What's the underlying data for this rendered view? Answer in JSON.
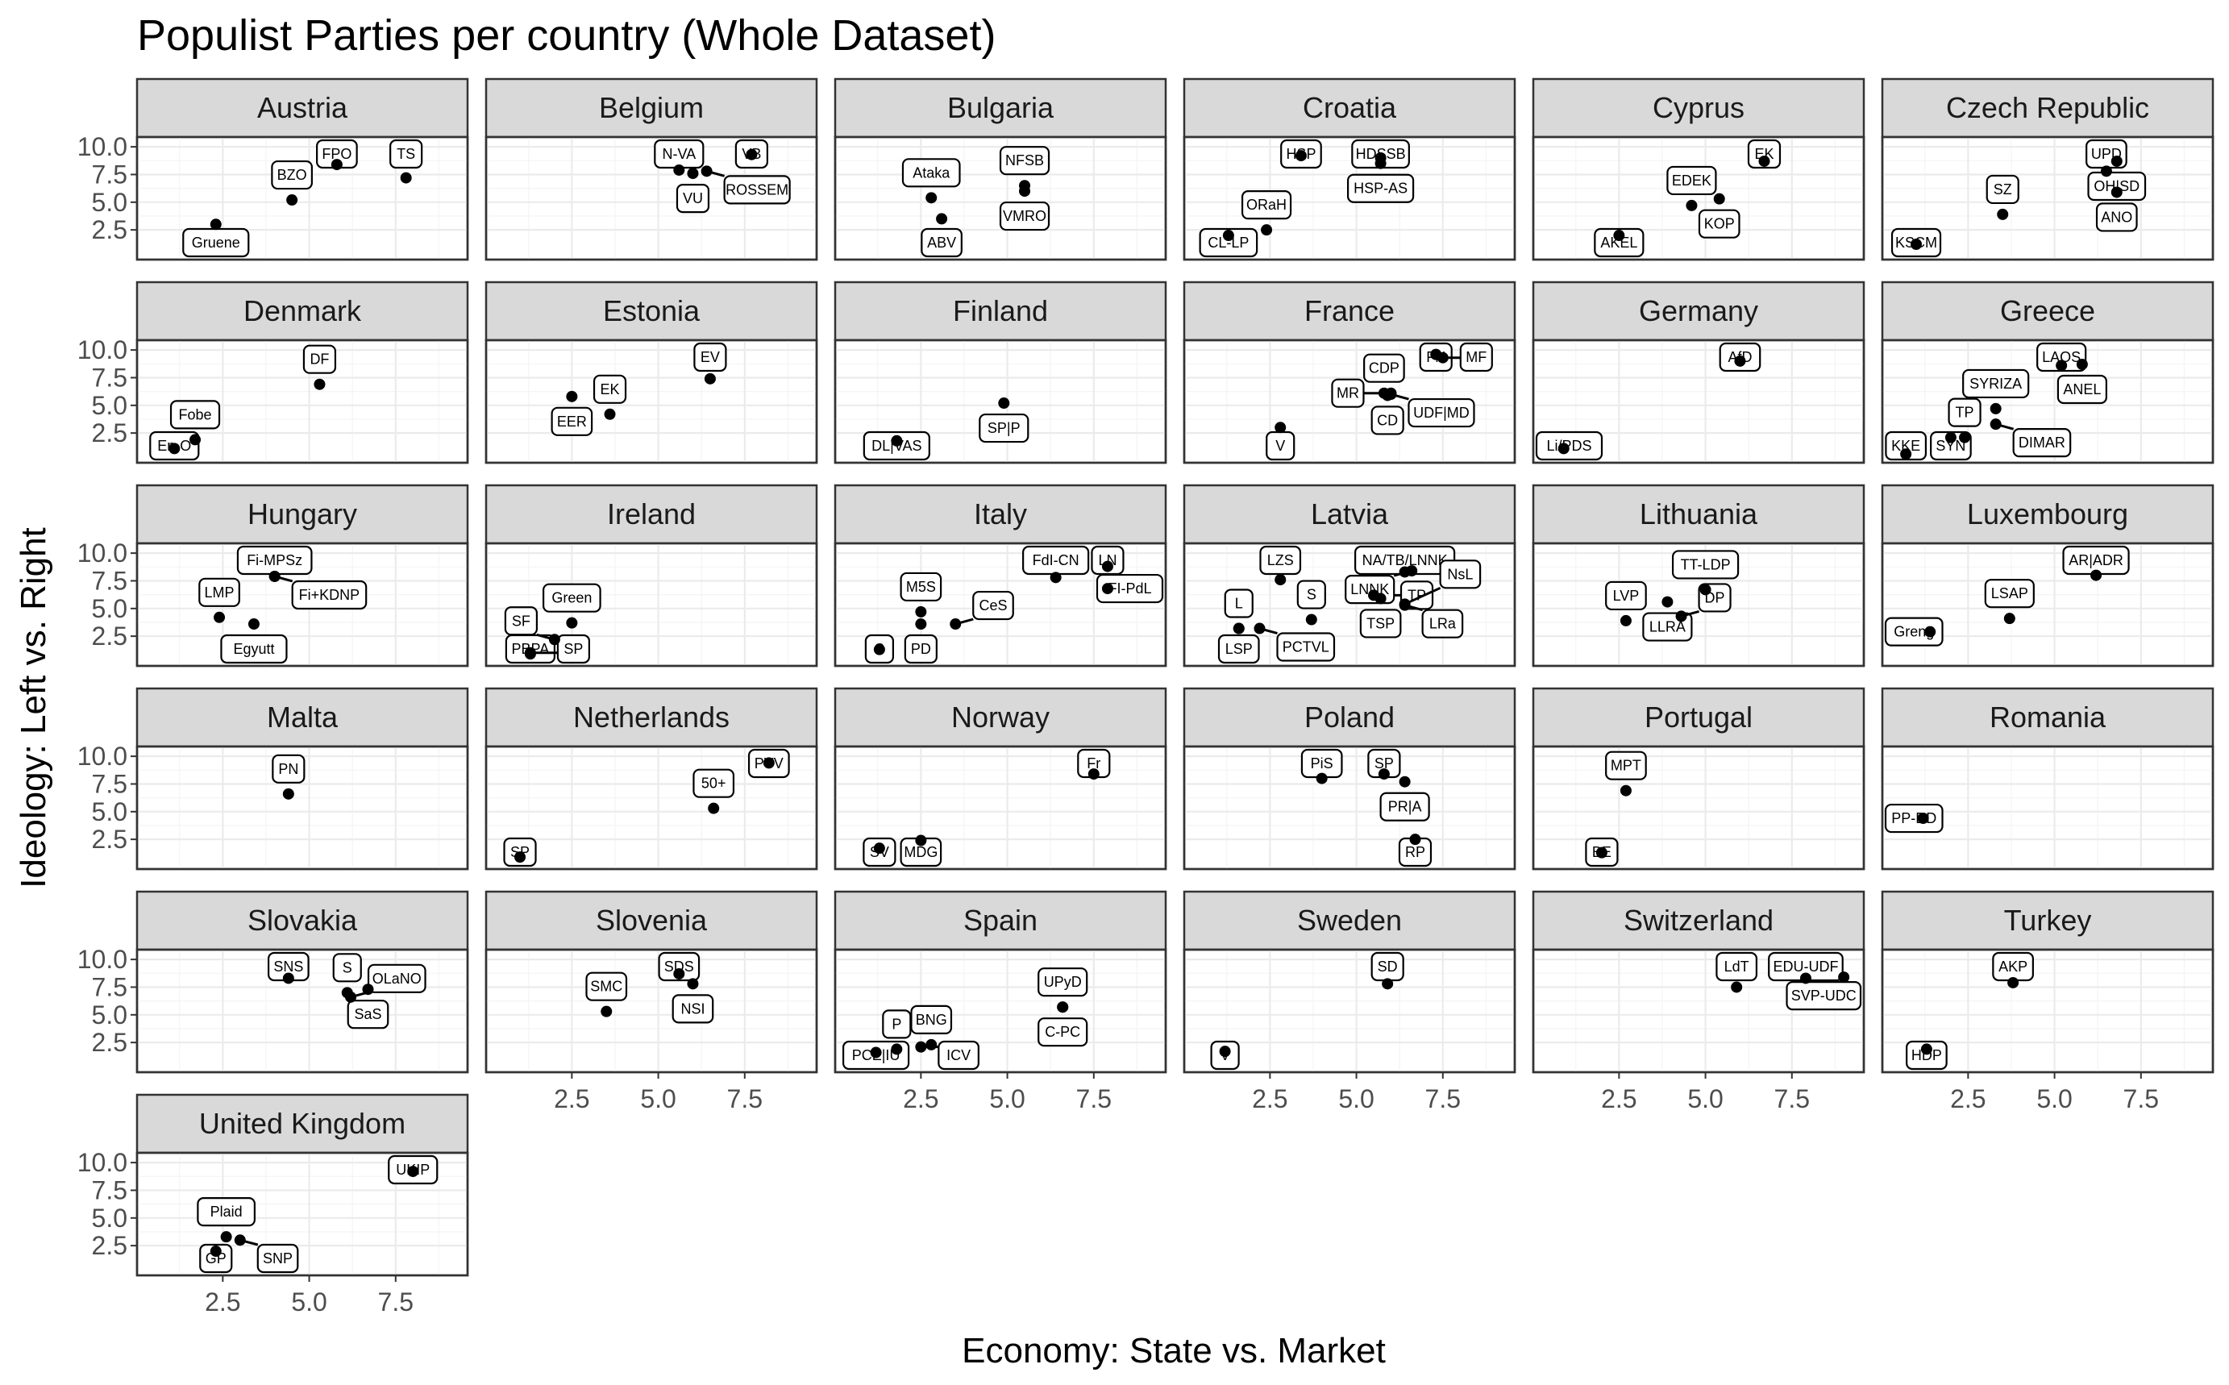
{
  "chart_data": {
    "type": "scatter",
    "title": "Populist Parties per country (Whole Dataset)",
    "xlabel": "Economy: State vs. Market",
    "ylabel": "Ideology: Left vs. Right",
    "xlim": [
      0.3,
      9.3
    ],
    "ylim": [
      0.4,
      10.3
    ],
    "x_ticks": [
      "2.5",
      "5.0",
      "7.5"
    ],
    "y_ticks": [
      "2.5",
      "5.0",
      "7.5",
      "10.0"
    ],
    "grid": true,
    "panels": [
      {
        "name": "Austria",
        "points": [
          {
            "label": "Gruene",
            "x": 2.3,
            "y": 3.0
          },
          {
            "label": "BZO",
            "x": 4.5,
            "y": 5.2
          },
          {
            "label": "FPO",
            "x": 5.8,
            "y": 8.4
          },
          {
            "label": "TS",
            "x": 7.8,
            "y": 7.2
          }
        ]
      },
      {
        "name": "Belgium",
        "points": [
          {
            "label": "N-VA",
            "x": 5.6,
            "y": 7.9
          },
          {
            "label": "VU",
            "x": 6.0,
            "y": 7.6
          },
          {
            "label": "VB",
            "x": 7.7,
            "y": 9.3
          },
          {
            "label": "ROSSEM",
            "x": 6.4,
            "y": 7.8
          }
        ]
      },
      {
        "name": "Bulgaria",
        "points": [
          {
            "label": "Ataka",
            "x": 2.8,
            "y": 5.4
          },
          {
            "label": "ABV",
            "x": 3.1,
            "y": 3.5
          },
          {
            "label": "NFSB",
            "x": 5.5,
            "y": 6.5
          },
          {
            "label": "VMRO",
            "x": 5.5,
            "y": 6.0
          }
        ]
      },
      {
        "name": "Croatia",
        "points": [
          {
            "label": "HSP",
            "x": 3.4,
            "y": 9.2
          },
          {
            "label": "HDSSB",
            "x": 5.7,
            "y": 9.0
          },
          {
            "label": "HSP-AS",
            "x": 5.7,
            "y": 8.5
          },
          {
            "label": "CL-LP",
            "x": 1.3,
            "y": 2.0
          },
          {
            "label": "ORaH",
            "x": 2.4,
            "y": 2.5
          }
        ]
      },
      {
        "name": "Cyprus",
        "points": [
          {
            "label": "AKEL",
            "x": 2.5,
            "y": 2.0
          },
          {
            "label": "EDEK",
            "x": 4.6,
            "y": 4.7
          },
          {
            "label": "KOP",
            "x": 5.4,
            "y": 5.3
          },
          {
            "label": "EK",
            "x": 6.7,
            "y": 8.7
          }
        ]
      },
      {
        "name": "Czech Republic",
        "points": [
          {
            "label": "KSCM",
            "x": 1.0,
            "y": 1.2
          },
          {
            "label": "SZ",
            "x": 3.5,
            "y": 3.9
          },
          {
            "label": "UPD",
            "x": 6.5,
            "y": 7.8
          },
          {
            "label": "OH|SD",
            "x": 6.8,
            "y": 8.7
          },
          {
            "label": "ANO",
            "x": 6.8,
            "y": 5.9
          }
        ]
      },
      {
        "name": "Denmark",
        "points": [
          {
            "label": "En-O",
            "x": 1.1,
            "y": 1.1
          },
          {
            "label": "Fobe",
            "x": 1.7,
            "y": 1.9
          },
          {
            "label": "DF",
            "x": 5.3,
            "y": 6.9
          }
        ]
      },
      {
        "name": "Estonia",
        "points": [
          {
            "label": "EER",
            "x": 2.5,
            "y": 5.8
          },
          {
            "label": "EK",
            "x": 3.6,
            "y": 4.2
          },
          {
            "label": "EV",
            "x": 6.5,
            "y": 7.4
          }
        ]
      },
      {
        "name": "Finland",
        "points": [
          {
            "label": "DL|VAS",
            "x": 1.8,
            "y": 1.8
          },
          {
            "label": "SP|P",
            "x": 4.9,
            "y": 5.2
          }
        ]
      },
      {
        "name": "France",
        "points": [
          {
            "label": "V",
            "x": 2.8,
            "y": 3.0
          },
          {
            "label": "CDP",
            "x": 5.8,
            "y": 6.1
          },
          {
            "label": "CD",
            "x": 5.9,
            "y": 5.9
          },
          {
            "label": "FN",
            "x": 7.3,
            "y": 9.6
          },
          {
            "label": "MF",
            "x": 7.5,
            "y": 9.3
          },
          {
            "label": "UDF|MD",
            "x": 6.0,
            "y": 6.0
          },
          {
            "label": "MR",
            "x": 6.0,
            "y": 6.1
          }
        ]
      },
      {
        "name": "Germany",
        "points": [
          {
            "label": "Li/PDS",
            "x": 0.9,
            "y": 1.1
          },
          {
            "label": "AfD",
            "x": 6.0,
            "y": 9.0
          }
        ]
      },
      {
        "name": "Greece",
        "points": [
          {
            "label": "KKE",
            "x": 0.7,
            "y": 0.6
          },
          {
            "label": "SYN",
            "x": 2.0,
            "y": 2.1
          },
          {
            "label": "TP",
            "x": 2.4,
            "y": 2.1
          },
          {
            "label": "LAOS",
            "x": 5.2,
            "y": 8.6
          },
          {
            "label": "ANEL",
            "x": 5.8,
            "y": 8.7
          },
          {
            "label": "DIMAR",
            "x": 3.3,
            "y": 3.3
          },
          {
            "label": "SYRIZA",
            "x": 3.3,
            "y": 4.7
          }
        ]
      },
      {
        "name": "Hungary",
        "points": [
          {
            "label": "LMP",
            "x": 2.4,
            "y": 4.2
          },
          {
            "label": "Fi-MPSz",
            "x": 4.0,
            "y": 7.9
          },
          {
            "label": "Fi+KDNP",
            "x": 4.0,
            "y": 7.9
          },
          {
            "label": "Egyutt",
            "x": 3.4,
            "y": 3.6
          }
        ]
      },
      {
        "name": "Ireland",
        "points": [
          {
            "label": "PBPA",
            "x": 1.3,
            "y": 0.9
          },
          {
            "label": "SP",
            "x": 1.3,
            "y": 1.0
          },
          {
            "label": "Green",
            "x": 2.5,
            "y": 3.7
          },
          {
            "label": "SF",
            "x": 2.0,
            "y": 2.2
          }
        ]
      },
      {
        "name": "Italy",
        "points": [
          {
            "label": "M5S",
            "x": 2.5,
            "y": 4.7
          },
          {
            "label": "S",
            "x": 1.3,
            "y": 1.3
          },
          {
            "label": "PD",
            "x": 2.5,
            "y": 3.6
          },
          {
            "label": "CeS",
            "x": 3.5,
            "y": 3.6
          },
          {
            "label": "FdI-CN",
            "x": 6.4,
            "y": 7.8
          },
          {
            "label": "LN",
            "x": 7.9,
            "y": 8.8
          },
          {
            "label": "FI-PdL",
            "x": 7.9,
            "y": 6.8
          }
        ]
      },
      {
        "name": "Latvia",
        "points": [
          {
            "label": "LZS",
            "x": 2.8,
            "y": 7.6
          },
          {
            "label": "NA/TB/LNNK",
            "x": 6.4,
            "y": 8.3
          },
          {
            "label": "LSP",
            "x": 1.6,
            "y": 3.2
          },
          {
            "label": "S",
            "x": 3.7,
            "y": 4.0
          },
          {
            "label": "L",
            "x": 1.6,
            "y": 3.2
          },
          {
            "label": "PCTVL",
            "x": 2.2,
            "y": 3.2
          },
          {
            "label": "TSP",
            "x": 5.7,
            "y": 5.9
          },
          {
            "label": "TP",
            "x": 5.5,
            "y": 6.2
          },
          {
            "label": "LNNK",
            "x": 6.6,
            "y": 8.4
          },
          {
            "label": "LRa",
            "x": 6.4,
            "y": 5.3
          },
          {
            "label": "NsL",
            "x": 6.4,
            "y": 5.4
          }
        ]
      },
      {
        "name": "Lithuania",
        "points": [
          {
            "label": "LVP",
            "x": 2.7,
            "y": 3.9
          },
          {
            "label": "LLRA",
            "x": 3.9,
            "y": 5.6
          },
          {
            "label": "TT-LDP",
            "x": 5.0,
            "y": 6.7
          },
          {
            "label": "DP",
            "x": 4.3,
            "y": 4.3
          }
        ]
      },
      {
        "name": "Luxembourg",
        "points": [
          {
            "label": "Greng",
            "x": 1.4,
            "y": 2.9
          },
          {
            "label": "LSAP",
            "x": 3.7,
            "y": 4.1
          },
          {
            "label": "AR|ADR",
            "x": 6.2,
            "y": 8.0
          }
        ]
      },
      {
        "name": "Malta",
        "points": [
          {
            "label": "PN",
            "x": 4.4,
            "y": 6.6
          }
        ]
      },
      {
        "name": "Netherlands",
        "points": [
          {
            "label": "SP",
            "x": 1.0,
            "y": 0.9
          },
          {
            "label": "50+",
            "x": 6.6,
            "y": 5.3
          },
          {
            "label": "PVV",
            "x": 8.2,
            "y": 9.4
          }
        ]
      },
      {
        "name": "Norway",
        "points": [
          {
            "label": "SV",
            "x": 1.3,
            "y": 1.7
          },
          {
            "label": "MDG",
            "x": 2.5,
            "y": 2.4
          },
          {
            "label": "Fr",
            "x": 7.5,
            "y": 8.4
          }
        ]
      },
      {
        "name": "Poland",
        "points": [
          {
            "label": "PiS",
            "x": 4.0,
            "y": 8.0
          },
          {
            "label": "SP",
            "x": 5.8,
            "y": 8.4
          },
          {
            "label": "PR|A",
            "x": 6.4,
            "y": 7.7
          },
          {
            "label": "RP",
            "x": 6.7,
            "y": 2.5
          }
        ]
      },
      {
        "name": "Portugal",
        "points": [
          {
            "label": "BE",
            "x": 2.0,
            "y": 1.3
          },
          {
            "label": "MPT",
            "x": 2.7,
            "y": 6.9
          }
        ]
      },
      {
        "name": "Romania",
        "points": [
          {
            "label": "PP-DD",
            "x": 1.2,
            "y": 4.4
          }
        ]
      },
      {
        "name": "Slovakia",
        "points": [
          {
            "label": "SNS",
            "x": 4.4,
            "y": 8.3
          },
          {
            "label": "S",
            "x": 6.1,
            "y": 7.0
          },
          {
            "label": "SaS",
            "x": 6.7,
            "y": 7.3
          },
          {
            "label": "OLaNO",
            "x": 6.2,
            "y": 6.6
          }
        ]
      },
      {
        "name": "Slovenia",
        "points": [
          {
            "label": "SMC",
            "x": 3.5,
            "y": 5.3
          },
          {
            "label": "SDS",
            "x": 5.6,
            "y": 8.7
          },
          {
            "label": "NSI",
            "x": 6.0,
            "y": 7.8
          }
        ]
      },
      {
        "name": "Spain",
        "points": [
          {
            "label": "PCE|IU",
            "x": 1.2,
            "y": 1.6
          },
          {
            "label": "P",
            "x": 1.8,
            "y": 1.9
          },
          {
            "label": "ICV",
            "x": 2.5,
            "y": 2.1
          },
          {
            "label": "BNG",
            "x": 2.8,
            "y": 2.3
          },
          {
            "label": "UPyD",
            "x": 6.6,
            "y": 5.7
          },
          {
            "label": "C-PC",
            "x": 6.6,
            "y": 5.7
          }
        ]
      },
      {
        "name": "Sweden",
        "points": [
          {
            "label": "V",
            "x": 1.2,
            "y": 1.7
          },
          {
            "label": "SD",
            "x": 5.9,
            "y": 7.8
          }
        ]
      },
      {
        "name": "Switzerland",
        "points": [
          {
            "label": "LdT",
            "x": 5.9,
            "y": 7.5
          },
          {
            "label": "EDU-UDF",
            "x": 7.9,
            "y": 8.3
          },
          {
            "label": "SVP-UDC",
            "x": 9.0,
            "y": 8.4
          }
        ]
      },
      {
        "name": "Turkey",
        "points": [
          {
            "label": "HDP",
            "x": 1.3,
            "y": 1.9
          },
          {
            "label": "AKP",
            "x": 3.8,
            "y": 7.9
          }
        ]
      },
      {
        "name": "United Kingdom",
        "points": [
          {
            "label": "GP",
            "x": 2.3,
            "y": 2.0
          },
          {
            "label": "Plaid",
            "x": 2.6,
            "y": 3.3
          },
          {
            "label": "SNP",
            "x": 3.0,
            "y": 3.0
          },
          {
            "label": "UKIP",
            "x": 8.0,
            "y": 9.2
          }
        ]
      }
    ]
  }
}
